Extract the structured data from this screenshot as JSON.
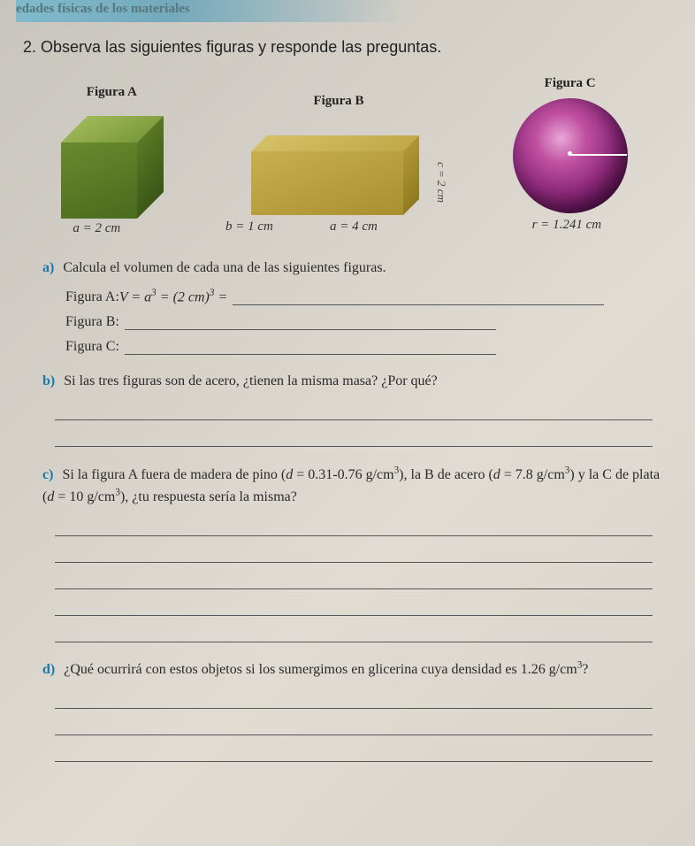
{
  "header": "edades físicas de los materiales",
  "question_num": "2.",
  "question_text": "Observa las siguientes figuras y responde las preguntas.",
  "figures": {
    "a": {
      "label": "Figura A",
      "dim_a": "a = 2 cm"
    },
    "b": {
      "label": "Figura B",
      "dim_b": "b = 1 cm",
      "dim_a": "a = 4 cm",
      "dim_c": "c = 2 cm"
    },
    "c": {
      "label": "Figura C",
      "dim_r": "r = 1.241 cm"
    }
  },
  "parts": {
    "a": {
      "label": "a)",
      "text": "Calcula el volumen de cada una de las siguientes figuras.",
      "lineA_prefix": "Figura A: ",
      "lineA_formula": "V = a³ = (2 cm)³ =",
      "lineB": "Figura B:",
      "lineC": "Figura C:"
    },
    "b": {
      "label": "b)",
      "text": "Si las tres figuras son de acero, ¿tienen la misma masa? ¿Por qué?"
    },
    "c": {
      "label": "c)",
      "text": "Si la figura A fuera de madera de pino (d = 0.31-0.76 g/cm³), la B de acero (d = 7.8 g/cm³) y la C de plata (d = 10 g/cm³), ¿tu respuesta sería la misma?"
    },
    "d": {
      "label": "d)",
      "text": "¿Qué ocurrirá con estos objetos si los sumergimos en glicerina cuya densidad es 1.26 g/cm³?"
    }
  }
}
